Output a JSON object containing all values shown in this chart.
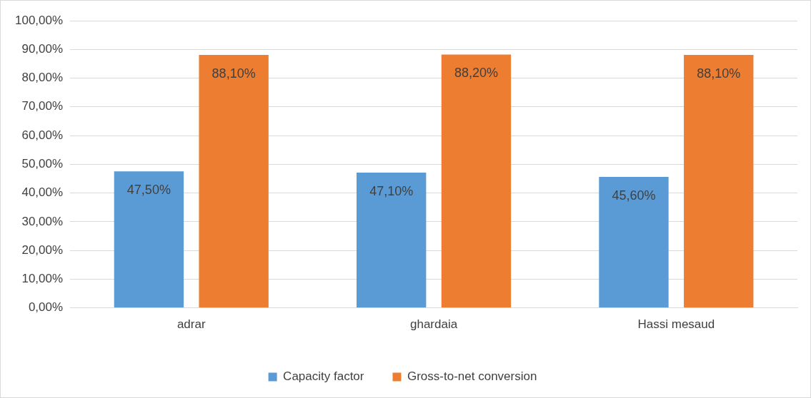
{
  "chart_data": {
    "type": "bar",
    "categories": [
      "adrar",
      "ghardaia",
      "Hassi mesaud"
    ],
    "series": [
      {
        "name": "Capacity factor",
        "color": "#5b9bd5",
        "values": [
          47.5,
          47.1,
          45.6
        ],
        "value_labels": [
          "47,50%",
          "47,10%",
          "45,60%"
        ]
      },
      {
        "name": "Gross-to-net conversion",
        "color": "#ed7d31",
        "values": [
          88.1,
          88.2,
          88.1
        ],
        "value_labels": [
          "88,10%",
          "88,20%",
          "88,10%"
        ]
      }
    ],
    "ylim": [
      0,
      100
    ],
    "yticks": [
      {
        "value": 0,
        "label": "0,00%"
      },
      {
        "value": 10,
        "label": "10,00%"
      },
      {
        "value": 20,
        "label": "20,00%"
      },
      {
        "value": 30,
        "label": "30,00%"
      },
      {
        "value": 40,
        "label": "40,00%"
      },
      {
        "value": 50,
        "label": "50,00%"
      },
      {
        "value": 60,
        "label": "60,00%"
      },
      {
        "value": 70,
        "label": "70,00%"
      },
      {
        "value": 80,
        "label": "80,00%"
      },
      {
        "value": 90,
        "label": "90,00%"
      },
      {
        "value": 100,
        "label": "100,00%"
      }
    ],
    "grid": "y",
    "legend": "bottom"
  }
}
